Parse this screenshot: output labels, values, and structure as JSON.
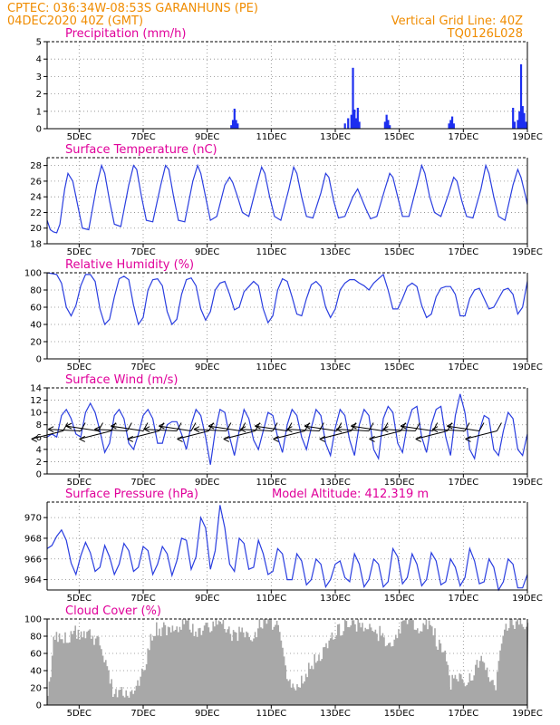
{
  "header": {
    "left_line1": "CPTEC:   036:34W-08:53S   GARANHUNS (PE)",
    "left_line2": "04DEC2020 40Z (GMT)",
    "right_line1": "Vertical Grid Line: 40Z",
    "right_line2": "TQ0126L028"
  },
  "x_ticks": [
    "5DEC",
    "7DEC",
    "9DEC",
    "11DEC",
    "13DEC",
    "15DEC",
    "17DEC",
    "19DEC"
  ],
  "colors": {
    "header": "#f08c00",
    "title": "#e0009a",
    "line": "#2a3ee0",
    "bar": "#1c2ef0",
    "cloud": "#a8a8a8"
  },
  "chart_data": [
    {
      "id": "precip",
      "type": "bar",
      "title": "Precipitation (mm/h)",
      "ylim": [
        0,
        5
      ],
      "yticks": [
        "0",
        "1",
        "2",
        "3",
        "4",
        "5"
      ],
      "bars": [
        {
          "day": 9.75,
          "value": 0.2
        },
        {
          "day": 9.8,
          "value": 0.5
        },
        {
          "day": 9.85,
          "value": 1.15
        },
        {
          "day": 9.9,
          "value": 0.5
        },
        {
          "day": 9.95,
          "value": 0.3
        },
        {
          "day": 13.3,
          "value": 0.3
        },
        {
          "day": 13.4,
          "value": 0.6
        },
        {
          "day": 13.5,
          "value": 0.8
        },
        {
          "day": 13.55,
          "value": 3.5
        },
        {
          "day": 13.6,
          "value": 1.1
        },
        {
          "day": 13.65,
          "value": 0.6
        },
        {
          "day": 13.7,
          "value": 1.2
        },
        {
          "day": 13.75,
          "value": 0.4
        },
        {
          "day": 14.55,
          "value": 0.4
        },
        {
          "day": 14.6,
          "value": 0.8
        },
        {
          "day": 14.65,
          "value": 0.5
        },
        {
          "day": 14.7,
          "value": 0.2
        },
        {
          "day": 16.55,
          "value": 0.3
        },
        {
          "day": 16.6,
          "value": 0.5
        },
        {
          "day": 16.65,
          "value": 0.7
        },
        {
          "day": 16.7,
          "value": 0.3
        },
        {
          "day": 18.55,
          "value": 1.2
        },
        {
          "day": 18.6,
          "value": 0.4
        },
        {
          "day": 18.7,
          "value": 0.5
        },
        {
          "day": 18.75,
          "value": 1.0
        },
        {
          "day": 18.8,
          "value": 3.7
        },
        {
          "day": 18.85,
          "value": 1.3
        },
        {
          "day": 18.9,
          "value": 0.9
        },
        {
          "day": 18.95,
          "value": 0.4
        }
      ]
    },
    {
      "id": "temp",
      "type": "line",
      "title": "Surface Temperature (nC)",
      "ylim": [
        18,
        29
      ],
      "yticks": [
        "18",
        "20",
        "22",
        "24",
        "26",
        "28"
      ],
      "x": [
        4.0,
        4.1,
        4.2,
        4.3,
        4.4,
        4.55,
        4.65,
        4.8,
        4.95,
        5.1,
        5.3,
        5.55,
        5.7,
        5.8,
        5.95,
        6.1,
        6.3,
        6.55,
        6.7,
        6.8,
        6.95,
        7.1,
        7.3,
        7.55,
        7.7,
        7.8,
        7.95,
        8.1,
        8.3,
        8.55,
        8.7,
        8.8,
        8.95,
        9.1,
        9.3,
        9.55,
        9.7,
        9.8,
        9.95,
        10.1,
        10.3,
        10.55,
        10.7,
        10.8,
        10.95,
        11.1,
        11.3,
        11.55,
        11.7,
        11.8,
        11.95,
        12.1,
        12.3,
        12.55,
        12.7,
        12.8,
        12.95,
        13.1,
        13.3,
        13.55,
        13.7,
        13.8,
        13.95,
        14.1,
        14.3,
        14.55,
        14.7,
        14.8,
        14.95,
        15.1,
        15.3,
        15.55,
        15.7,
        15.8,
        15.95,
        16.1,
        16.3,
        16.55,
        16.7,
        16.8,
        16.95,
        17.1,
        17.3,
        17.55,
        17.7,
        17.8,
        17.95,
        18.1,
        18.3,
        18.55,
        18.7,
        18.8,
        18.95,
        19.0
      ],
      "values": [
        21.0,
        19.8,
        19.5,
        19.4,
        20.5,
        25.0,
        27.0,
        26.0,
        23.0,
        20.0,
        19.8,
        25.5,
        28.0,
        27.0,
        23.5,
        20.5,
        20.2,
        25.5,
        28.0,
        27.5,
        24.0,
        21.0,
        20.8,
        25.5,
        28.0,
        27.5,
        24.0,
        21.0,
        20.8,
        26.0,
        28.0,
        27.0,
        24.0,
        21.0,
        21.5,
        25.5,
        26.5,
        25.8,
        24.0,
        22.0,
        21.5,
        25.5,
        27.8,
        27.0,
        24.0,
        21.5,
        21.0,
        25.0,
        27.8,
        27.0,
        24.0,
        21.5,
        21.3,
        24.5,
        27.0,
        26.5,
        23.5,
        21.3,
        21.5,
        24.0,
        25.0,
        24.0,
        22.5,
        21.2,
        21.5,
        25.0,
        27.0,
        26.5,
        24.0,
        21.5,
        21.5,
        25.5,
        28.0,
        27.0,
        24.0,
        22.0,
        21.5,
        24.5,
        26.5,
        26.0,
        23.5,
        21.5,
        21.3,
        25.0,
        28.0,
        27.0,
        24.0,
        21.5,
        21.0,
        25.5,
        27.5,
        26.5,
        24.0,
        23.0
      ]
    },
    {
      "id": "rh",
      "type": "line",
      "title": "Relative Humidity (%)",
      "ylim": [
        0,
        100
      ],
      "yticks": [
        "0",
        "20",
        "40",
        "60",
        "80",
        "100"
      ],
      "x": [
        4.0,
        4.15,
        4.3,
        4.45,
        4.6,
        4.75,
        4.9,
        5.05,
        5.2,
        5.35,
        5.5,
        5.65,
        5.8,
        5.95,
        6.1,
        6.25,
        6.4,
        6.55,
        6.7,
        6.85,
        7.0,
        7.15,
        7.3,
        7.45,
        7.6,
        7.75,
        7.9,
        8.05,
        8.2,
        8.35,
        8.5,
        8.65,
        8.8,
        8.95,
        9.1,
        9.25,
        9.4,
        9.55,
        9.7,
        9.85,
        10.0,
        10.15,
        10.3,
        10.45,
        10.6,
        10.75,
        10.9,
        11.05,
        11.2,
        11.35,
        11.5,
        11.65,
        11.8,
        11.95,
        12.1,
        12.25,
        12.4,
        12.55,
        12.7,
        12.85,
        13.0,
        13.15,
        13.3,
        13.45,
        13.6,
        13.75,
        13.9,
        14.05,
        14.2,
        14.35,
        14.5,
        14.65,
        14.8,
        14.95,
        15.1,
        15.25,
        15.4,
        15.55,
        15.7,
        15.85,
        16.0,
        16.15,
        16.3,
        16.45,
        16.6,
        16.75,
        16.9,
        17.05,
        17.2,
        17.35,
        17.5,
        17.65,
        17.8,
        17.95,
        18.1,
        18.25,
        18.4,
        18.55,
        18.7,
        18.85,
        19.0
      ],
      "values": [
        100,
        99,
        98,
        88,
        60,
        50,
        62,
        85,
        98,
        98,
        90,
        58,
        40,
        46,
        72,
        93,
        96,
        92,
        62,
        40,
        48,
        80,
        92,
        93,
        85,
        55,
        40,
        46,
        75,
        92,
        94,
        85,
        58,
        45,
        55,
        80,
        88,
        90,
        75,
        57,
        60,
        78,
        84,
        90,
        85,
        58,
        42,
        50,
        80,
        93,
        90,
        72,
        52,
        50,
        70,
        86,
        90,
        84,
        60,
        48,
        58,
        80,
        88,
        92,
        92,
        88,
        85,
        80,
        88,
        93,
        98,
        80,
        58,
        58,
        70,
        84,
        88,
        84,
        62,
        48,
        52,
        72,
        82,
        84,
        84,
        75,
        50,
        50,
        70,
        80,
        82,
        70,
        58,
        60,
        70,
        80,
        82,
        75,
        52,
        60,
        90
      ]
    },
    {
      "id": "wind",
      "type": "line",
      "title": "Surface Wind (m/s)",
      "ylim": [
        0,
        14
      ],
      "yticks": [
        "0",
        "2",
        "4",
        "6",
        "8",
        "10",
        "12",
        "14"
      ],
      "x": [
        4.0,
        4.15,
        4.3,
        4.45,
        4.6,
        4.75,
        4.9,
        5.05,
        5.2,
        5.35,
        5.5,
        5.65,
        5.8,
        5.95,
        6.1,
        6.25,
        6.4,
        6.55,
        6.7,
        6.85,
        7.0,
        7.15,
        7.3,
        7.45,
        7.6,
        7.75,
        7.9,
        8.05,
        8.2,
        8.35,
        8.5,
        8.65,
        8.8,
        8.95,
        9.1,
        9.25,
        9.4,
        9.55,
        9.7,
        9.85,
        10.0,
        10.15,
        10.3,
        10.45,
        10.6,
        10.75,
        10.9,
        11.05,
        11.2,
        11.35,
        11.5,
        11.65,
        11.8,
        11.95,
        12.1,
        12.25,
        12.4,
        12.55,
        12.7,
        12.85,
        13.0,
        13.15,
        13.3,
        13.45,
        13.6,
        13.75,
        13.9,
        14.05,
        14.2,
        14.35,
        14.5,
        14.65,
        14.8,
        14.95,
        15.1,
        15.25,
        15.4,
        15.55,
        15.7,
        15.85,
        16.0,
        16.15,
        16.3,
        16.45,
        16.6,
        16.75,
        16.9,
        17.05,
        17.2,
        17.35,
        17.5,
        17.65,
        17.8,
        17.95,
        18.1,
        18.25,
        18.4,
        18.55,
        18.7,
        18.85,
        19.0
      ],
      "values": [
        6.0,
        6.5,
        6.0,
        9.5,
        10.5,
        9.0,
        6.5,
        6.0,
        10.0,
        11.5,
        10.0,
        7.0,
        3.5,
        5.0,
        9.5,
        10.5,
        9.0,
        5.0,
        4.0,
        6.5,
        9.5,
        10.5,
        9.0,
        5.0,
        5.0,
        8.0,
        8.5,
        8.5,
        6.5,
        4.0,
        8.0,
        10.5,
        9.5,
        6.0,
        1.5,
        7.0,
        10.5,
        10.0,
        6.0,
        3.0,
        7.0,
        10.5,
        9.0,
        5.5,
        4.0,
        7.0,
        10.0,
        9.5,
        6.0,
        3.5,
        8.0,
        10.5,
        9.5,
        6.0,
        4.0,
        7.5,
        10.5,
        9.5,
        5.0,
        3.0,
        7.5,
        10.5,
        9.5,
        5.5,
        3.0,
        8.0,
        10.5,
        9.5,
        4.0,
        2.5,
        9.0,
        11.0,
        10.0,
        5.0,
        3.5,
        8.0,
        10.5,
        11.0,
        6.0,
        3.5,
        8.0,
        10.5,
        11.0,
        6.0,
        3.0,
        9.5,
        13.0,
        10.0,
        4.0,
        2.5,
        7.0,
        9.5,
        9.0,
        4.0,
        3.0,
        7.0,
        10.0,
        9.0,
        4.0,
        3.0,
        6.5
      ],
      "barb_days": [
        4.5,
        5.05,
        5.6,
        6.0,
        6.5,
        7.0,
        7.5,
        8.05,
        8.5,
        9.05,
        9.6,
        10.05,
        10.5,
        11.05,
        11.5,
        12.05,
        12.5,
        13.05,
        13.5,
        14.05,
        14.5,
        15.05,
        15.5,
        16.05,
        16.5,
        17.05,
        17.5,
        18.05
      ]
    },
    {
      "id": "pres",
      "type": "line",
      "title": "Surface Pressure (hPa)",
      "annotation": "Model Altitude: 412.319 m",
      "ylim": [
        963,
        971.5
      ],
      "yticks": [
        "964",
        "966",
        "968",
        "970"
      ],
      "x": [
        4.0,
        4.15,
        4.3,
        4.45,
        4.6,
        4.75,
        4.9,
        5.05,
        5.2,
        5.35,
        5.5,
        5.65,
        5.8,
        5.95,
        6.1,
        6.25,
        6.4,
        6.55,
        6.7,
        6.85,
        7.0,
        7.15,
        7.3,
        7.45,
        7.6,
        7.75,
        7.9,
        8.05,
        8.2,
        8.35,
        8.5,
        8.65,
        8.8,
        8.95,
        9.1,
        9.25,
        9.4,
        9.55,
        9.7,
        9.85,
        10.0,
        10.15,
        10.3,
        10.45,
        10.6,
        10.75,
        10.9,
        11.05,
        11.2,
        11.35,
        11.5,
        11.65,
        11.8,
        11.95,
        12.1,
        12.25,
        12.4,
        12.55,
        12.7,
        12.85,
        13.0,
        13.15,
        13.3,
        13.45,
        13.6,
        13.75,
        13.9,
        14.05,
        14.2,
        14.35,
        14.5,
        14.65,
        14.8,
        14.95,
        15.1,
        15.25,
        15.4,
        15.55,
        15.7,
        15.85,
        16.0,
        16.15,
        16.3,
        16.45,
        16.6,
        16.75,
        16.9,
        17.05,
        17.2,
        17.35,
        17.5,
        17.65,
        17.8,
        17.95,
        18.1,
        18.25,
        18.4,
        18.55,
        18.7,
        18.85,
        19.0
      ],
      "values": [
        967.0,
        967.3,
        968.2,
        968.8,
        967.8,
        965.6,
        964.5,
        966.3,
        967.6,
        966.6,
        964.8,
        965.2,
        967.3,
        966.2,
        964.5,
        965.5,
        967.5,
        966.8,
        964.8,
        965.2,
        967.2,
        966.8,
        964.5,
        965.5,
        967.2,
        966.5,
        964.4,
        965.8,
        968.0,
        967.8,
        965.0,
        966.2,
        970.0,
        969.0,
        965.0,
        966.8,
        971.2,
        969.0,
        965.5,
        964.8,
        968.0,
        967.5,
        965.0,
        965.2,
        967.8,
        966.5,
        964.5,
        964.8,
        967.0,
        966.5,
        964.0,
        964.0,
        966.5,
        965.8,
        963.5,
        964.0,
        966.0,
        965.5,
        963.3,
        964.0,
        965.5,
        965.8,
        964.2,
        963.8,
        966.5,
        965.5,
        963.3,
        964.0,
        966.0,
        965.5,
        963.3,
        963.8,
        967.0,
        966.2,
        963.6,
        964.2,
        966.5,
        965.5,
        963.4,
        964.0,
        966.6,
        965.8,
        963.5,
        963.8,
        966.0,
        965.2,
        963.4,
        964.2,
        967.0,
        965.8,
        963.6,
        963.8,
        966.0,
        965.2,
        963.0,
        963.8,
        966.0,
        965.5,
        963.2,
        963.2,
        964.5
      ]
    },
    {
      "id": "cloud",
      "type": "area",
      "title": "Cloud Cover (%)",
      "ylim": [
        0,
        100
      ],
      "yticks": [
        "0",
        "20",
        "40",
        "60",
        "80",
        "100"
      ],
      "x": [
        4.0,
        4.2,
        4.4,
        4.6,
        4.8,
        5.0,
        5.2,
        5.4,
        5.6,
        5.8,
        6.0,
        6.2,
        6.4,
        6.6,
        6.8,
        7.0,
        7.2,
        7.4,
        7.6,
        7.8,
        8.0,
        8.2,
        8.4,
        8.6,
        8.8,
        9.0,
        9.2,
        9.4,
        9.6,
        9.8,
        10.0,
        10.2,
        10.4,
        10.6,
        10.8,
        11.0,
        11.2,
        11.4,
        11.6,
        11.8,
        12.0,
        12.2,
        12.4,
        12.6,
        12.8,
        13.0,
        13.2,
        13.4,
        13.6,
        13.8,
        14.0,
        14.2,
        14.4,
        14.6,
        14.8,
        15.0,
        15.2,
        15.4,
        15.6,
        15.8,
        16.0,
        16.2,
        16.4,
        16.6,
        16.8,
        17.0,
        17.2,
        17.4,
        17.6,
        17.8,
        18.0,
        18.2,
        18.4,
        18.6,
        18.8,
        19.0
      ],
      "values": [
        5,
        82,
        80,
        75,
        85,
        84,
        86,
        80,
        75,
        55,
        20,
        12,
        15,
        8,
        20,
        40,
        75,
        90,
        88,
        85,
        86,
        92,
        95,
        85,
        88,
        90,
        96,
        98,
        92,
        80,
        85,
        80,
        75,
        95,
        96,
        94,
        90,
        50,
        15,
        20,
        35,
        45,
        55,
        60,
        70,
        85,
        90,
        97,
        95,
        92,
        88,
        80,
        85,
        60,
        75,
        90,
        98,
        95,
        92,
        95,
        90,
        70,
        60,
        25,
        35,
        20,
        30,
        45,
        60,
        30,
        22,
        80,
        96,
        95,
        97,
        92
      ]
    }
  ]
}
